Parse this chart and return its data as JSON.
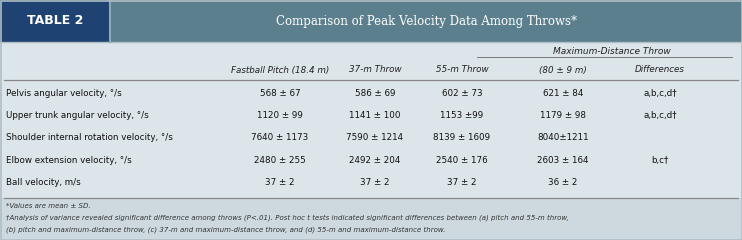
{
  "title": "Comparison of Peak Velocity Data Among Throws*",
  "table_label": "TABLE 2",
  "header_bg": "#5b7f8d",
  "label_bg": "#1e4272",
  "body_bg": "#dce5e9",
  "footer_bg": "#cdd9de",
  "border_color": "#b0bec5",
  "col_headers": [
    "",
    "Fastball Pitch (18.4 m)",
    "37-m Throw",
    "55-m Throw",
    "(80 ± 9 m)",
    "Differences"
  ],
  "subheader": "Maximum-Distance Throw",
  "rows": [
    [
      "Pelvis angular velocity, °/s",
      "568 ± 67",
      "586 ± 69",
      "602 ± 73",
      "621 ± 84",
      "a,b,c,d†"
    ],
    [
      "Upper trunk angular velocity, °/s",
      "1120 ± 99",
      "1141 ± 100",
      "1153 ±99",
      "1179 ± 98",
      "a,b,c,d†"
    ],
    [
      "Shoulder internal rotation velocity, °/s",
      "7640 ± 1173",
      "7590 ± 1214",
      "8139 ± 1609",
      "8040±1211",
      ""
    ],
    [
      "Elbow extension velocity, °/s",
      "2480 ± 255",
      "2492 ± 204",
      "2540 ± 176",
      "2603 ± 164",
      "b,c†"
    ],
    [
      "Ball velocity, m/s",
      "37 ± 2",
      "37 ± 2",
      "37 ± 2",
      "36 ± 2",
      ""
    ]
  ],
  "footnote1": "*Values are mean ± SD.",
  "footnote2": "†Analysis of variance revealed significant difference among throws (P<.01). Post hoc t tests indicated significant differences between (a) pitch and 55-m throw,",
  "footnote3": "(b) pitch and maximum-distance throw, (c) 37-m and maximum-distance throw, and (d) 55-m and maximum-distance throw."
}
